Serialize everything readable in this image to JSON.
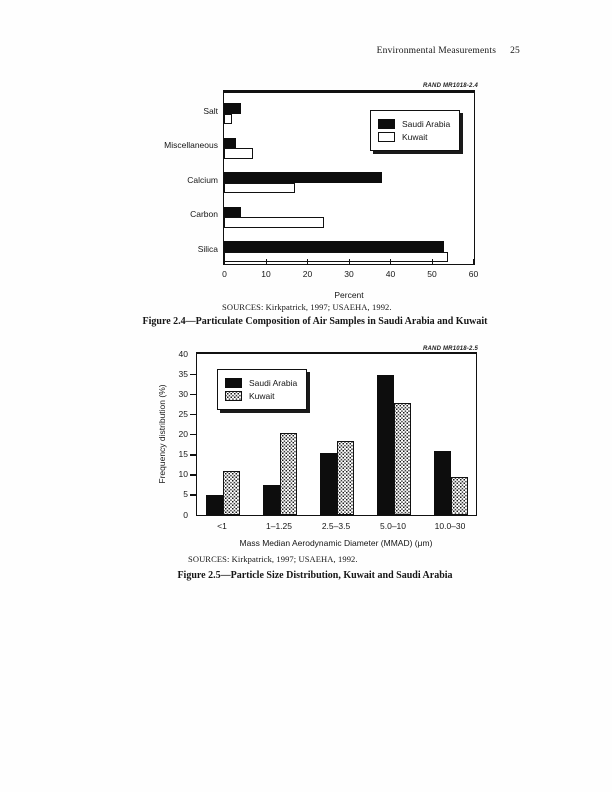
{
  "page": {
    "header": {
      "title": "Environmental Measurements",
      "page_number": "25"
    }
  },
  "figure_2_4": {
    "rand_label": "RAND MR1018-2.4",
    "legend": {
      "saudi": "Saudi Arabia",
      "kuwait": "Kuwait"
    },
    "xlabel": "Percent",
    "sources": "SOURCES:  Kirkpatrick, 1997; USAEHA, 1992.",
    "caption": "Figure 2.4—Particulate Composition of Air Samples in Saudi Arabia and Kuwait"
  },
  "figure_2_5": {
    "rand_label": "RAND MR1018-2.5",
    "legend": {
      "saudi": "Saudi Arabia",
      "kuwait": "Kuwait"
    },
    "xlabel": "Mass Median Aerodynamic Diameter (MMAD) (μm)",
    "ylabel": "Frequency distribution (%)",
    "sources": "SOURCES:  Kirkpatrick, 1997; USAEHA, 1992.",
    "caption": "Figure 2.5—Particle Size Distribution, Kuwait and Saudi Arabia"
  },
  "chart_data": [
    {
      "id": "figure-2-4",
      "type": "bar",
      "orientation": "horizontal",
      "title": "",
      "categories": [
        "Salt",
        "Miscellaneous",
        "Calcium",
        "Carbon",
        "Silica"
      ],
      "series": [
        {
          "name": "Saudi Arabia",
          "fill": "solid-black",
          "values": [
            4,
            3,
            38,
            4,
            53
          ]
        },
        {
          "name": "Kuwait",
          "fill": "open-white",
          "values": [
            2,
            7,
            17,
            24,
            54
          ]
        }
      ],
      "xlabel": "Percent",
      "xlim": [
        0,
        60
      ],
      "x_ticks": [
        0,
        10,
        20,
        30,
        40,
        50,
        60
      ],
      "legend_position": "top-right",
      "grid": false
    },
    {
      "id": "figure-2-5",
      "type": "bar",
      "orientation": "vertical",
      "title": "",
      "categories": [
        "<1",
        "1–1.25",
        "2.5–3.5",
        "5.0–10",
        "10.0–30"
      ],
      "series": [
        {
          "name": "Saudi Arabia",
          "fill": "solid-black",
          "values": [
            5,
            7.5,
            15.5,
            35,
            16
          ]
        },
        {
          "name": "Kuwait",
          "fill": "stippled",
          "values": [
            11,
            20.5,
            18.5,
            28,
            9.5
          ]
        }
      ],
      "xlabel": "Mass Median Aerodynamic Diameter (MMAD) (μm)",
      "ylabel": "Frequency distribution (%)",
      "ylim": [
        0,
        40
      ],
      "y_ticks": [
        0,
        5,
        10,
        15,
        20,
        25,
        30,
        35,
        40
      ],
      "legend_position": "top-left",
      "grid": false
    }
  ]
}
